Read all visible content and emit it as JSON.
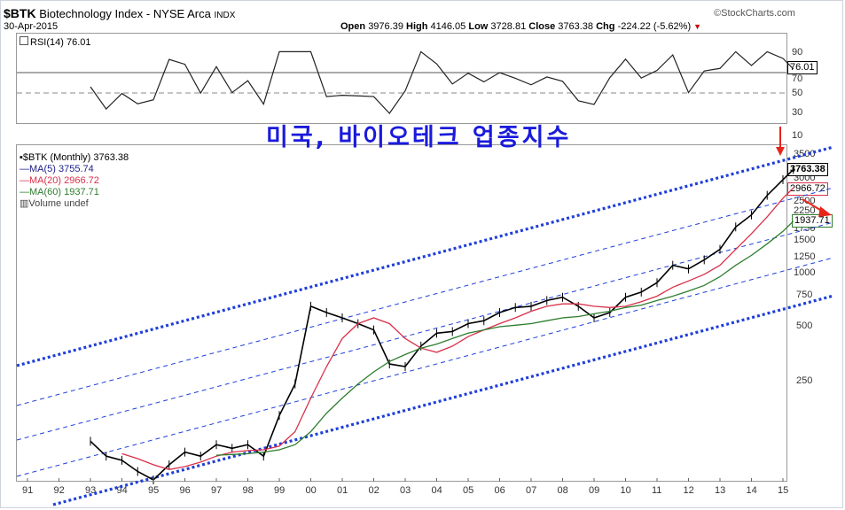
{
  "header": {
    "symbol": "$BTK",
    "name": "Biotechnology Index - NYSE Arca",
    "exchange": "INDX",
    "date": "30-Apr-2015",
    "source": "©StockCharts.com",
    "open_label": "Open",
    "open": "3976.39",
    "high_label": "High",
    "high": "4146.05",
    "low_label": "Low",
    "low": "3728.81",
    "close_label": "Close",
    "close": "3763.38",
    "chg_label": "Chg",
    "chg": "-224.22 (-5.62%)",
    "chg_marker": "▼"
  },
  "rsi": {
    "label": "RSI(14) 76.01",
    "value_tag": "76.01",
    "ticks": [
      "90",
      "70",
      "50",
      "30",
      "10"
    ]
  },
  "annotation": "미국, 바이오테크 업종지수",
  "legend": {
    "main": "$BTK (Monthly) 3763.38",
    "ma5": "MA(5) 3755.74",
    "ma20": "MA(20) 2966.72",
    "ma60": "MA(60) 1937.71",
    "volume": "Volume undef"
  },
  "price_tags": {
    "close": "3763.38",
    "ma20": "2966.72",
    "ma60": "1937.71"
  },
  "colors": {
    "ma5": "#1d1d8c",
    "ma20": "#d9304a",
    "ma60": "#2e7d2e",
    "channel": "#1f3fd9",
    "rsi_fill": "#5f9b5f",
    "annotation": "#1a1adc",
    "arrow": "#e8251b"
  },
  "chart_data": {
    "type": "line",
    "title": "$BTK Biotechnology Index - NYSE Arca INDX",
    "scale": "log",
    "x_ticks": [
      "91",
      "92",
      "93",
      "94",
      "95",
      "96",
      "97",
      "98",
      "99",
      "00",
      "01",
      "02",
      "03",
      "04",
      "05",
      "06",
      "07",
      "08",
      "09",
      "10",
      "11",
      "12",
      "13",
      "14",
      "15"
    ],
    "y_ticks": [
      "3500",
      "3000",
      "2500",
      "2250",
      "1750",
      "1500",
      "1250",
      "1000",
      "750",
      "500",
      "250"
    ],
    "x": [
      1993.0,
      1993.5,
      1994.0,
      1994.5,
      1995.0,
      1995.5,
      1996.0,
      1996.5,
      1997.0,
      1997.5,
      1998.0,
      1998.5,
      1999.0,
      1999.5,
      2000.0,
      2000.5,
      2001.0,
      2001.5,
      2002.0,
      2002.5,
      2003.0,
      2003.5,
      2004.0,
      2004.5,
      2005.0,
      2005.5,
      2006.0,
      2006.5,
      2007.0,
      2007.5,
      2008.0,
      2008.5,
      2009.0,
      2009.5,
      2010.0,
      2010.5,
      2011.0,
      2011.5,
      2012.0,
      2012.5,
      2013.0,
      2013.5,
      2014.0,
      2014.5,
      2015.0,
      2015.33
    ],
    "series": [
      {
        "name": "$BTK (Monthly)",
        "values": [
          115,
          95,
          90,
          78,
          70,
          85,
          100,
          95,
          110,
          105,
          110,
          95,
          160,
          240,
          650,
          600,
          560,
          520,
          480,
          310,
          300,
          390,
          460,
          470,
          520,
          540,
          600,
          640,
          650,
          700,
          730,
          650,
          560,
          600,
          730,
          780,
          880,
          1100,
          1050,
          1180,
          1350,
          1800,
          2100,
          2700,
          3300,
          3763
        ]
      },
      {
        "name": "MA(20)",
        "values": [
          null,
          null,
          98,
          92,
          85,
          80,
          83,
          88,
          95,
          100,
          102,
          103,
          108,
          130,
          200,
          300,
          430,
          520,
          560,
          520,
          430,
          380,
          360,
          390,
          440,
          480,
          520,
          560,
          610,
          650,
          670,
          670,
          650,
          640,
          650,
          690,
          740,
          830,
          900,
          980,
          1100,
          1350,
          1650,
          2050,
          2600,
          2967
        ]
      },
      {
        "name": "MA(60)",
        "values": [
          null,
          null,
          null,
          null,
          null,
          null,
          null,
          null,
          96,
          97,
          98,
          100,
          103,
          110,
          130,
          165,
          200,
          240,
          280,
          320,
          350,
          380,
          400,
          430,
          460,
          480,
          500,
          510,
          520,
          540,
          560,
          570,
          590,
          610,
          640,
          660,
          700,
          740,
          790,
          850,
          950,
          1100,
          1250,
          1450,
          1700,
          1938
        ]
      }
    ]
  }
}
